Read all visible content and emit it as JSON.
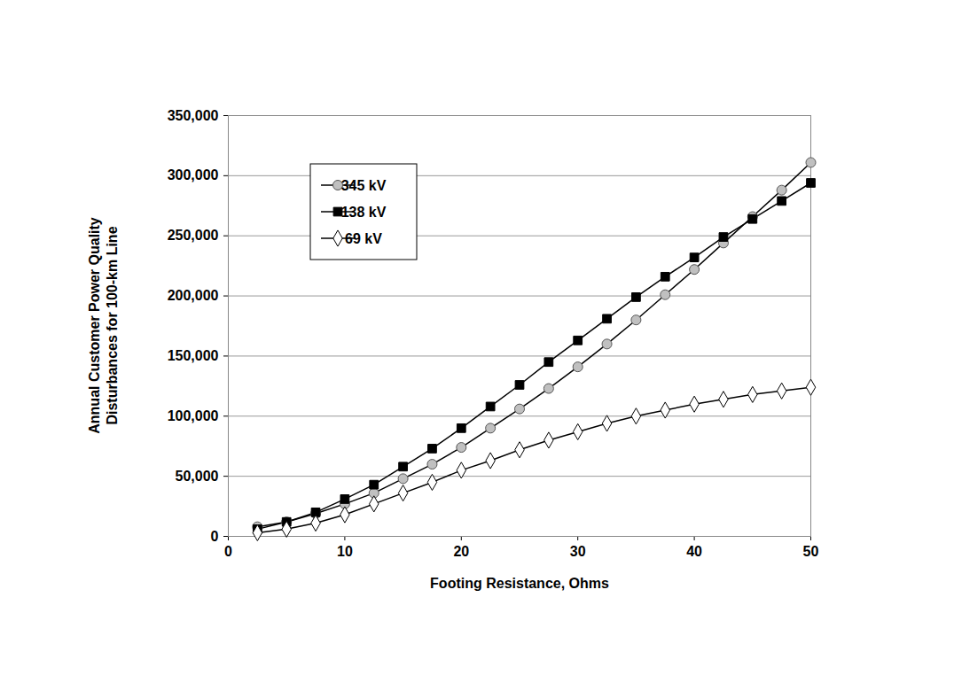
{
  "chart_data": {
    "type": "line",
    "xlabel": "Footing Resistance, Ohms",
    "ylabel": "Annual Customer Power Quality Disturbances for 100-km Line",
    "x": [
      2.5,
      5,
      7.5,
      10,
      12.5,
      15,
      17.5,
      20,
      22.5,
      25,
      27.5,
      30,
      32.5,
      35,
      37.5,
      40,
      42.5,
      45,
      47.5,
      50
    ],
    "series": [
      {
        "name": "345 kV",
        "color": "#c0c0c0",
        "marker": "circle",
        "values": [
          8000,
          12000,
          19000,
          27000,
          36000,
          48000,
          60000,
          74000,
          90000,
          106000,
          123000,
          141000,
          160000,
          180000,
          201000,
          222000,
          244000,
          266000,
          288000,
          311000
        ]
      },
      {
        "name": "138 kV",
        "color": "#000000",
        "marker": "square",
        "values": [
          6000,
          12000,
          20000,
          31000,
          43000,
          58000,
          73000,
          90000,
          108000,
          126000,
          145000,
          163000,
          181000,
          199000,
          216000,
          232000,
          249000,
          264000,
          279000,
          294000
        ]
      },
      {
        "name": "69 kV",
        "color": "#ffffff",
        "marker": "diamond",
        "values": [
          3000,
          6000,
          11000,
          18000,
          27000,
          36000,
          45000,
          55000,
          63000,
          72000,
          80000,
          87000,
          94000,
          100000,
          105000,
          110000,
          114000,
          118000,
          121000,
          124000
        ]
      }
    ],
    "xlim": [
      0,
      50
    ],
    "xticks": [
      0,
      10,
      20,
      30,
      40,
      50
    ],
    "ylim": [
      0,
      350000
    ],
    "yticks": [
      0,
      {
        "value": 50000,
        "label": "50,000"
      },
      {
        "value": 100000,
        "label": "100,000"
      },
      {
        "value": 150000,
        "label": "150,000"
      },
      {
        "value": 200000,
        "label": "200,000"
      },
      {
        "value": 250000,
        "label": "250,000"
      },
      {
        "value": 300000,
        "label": "300,000"
      },
      {
        "value": 350000,
        "label": "350,000"
      }
    ],
    "grid": true,
    "legend": "upper left"
  }
}
